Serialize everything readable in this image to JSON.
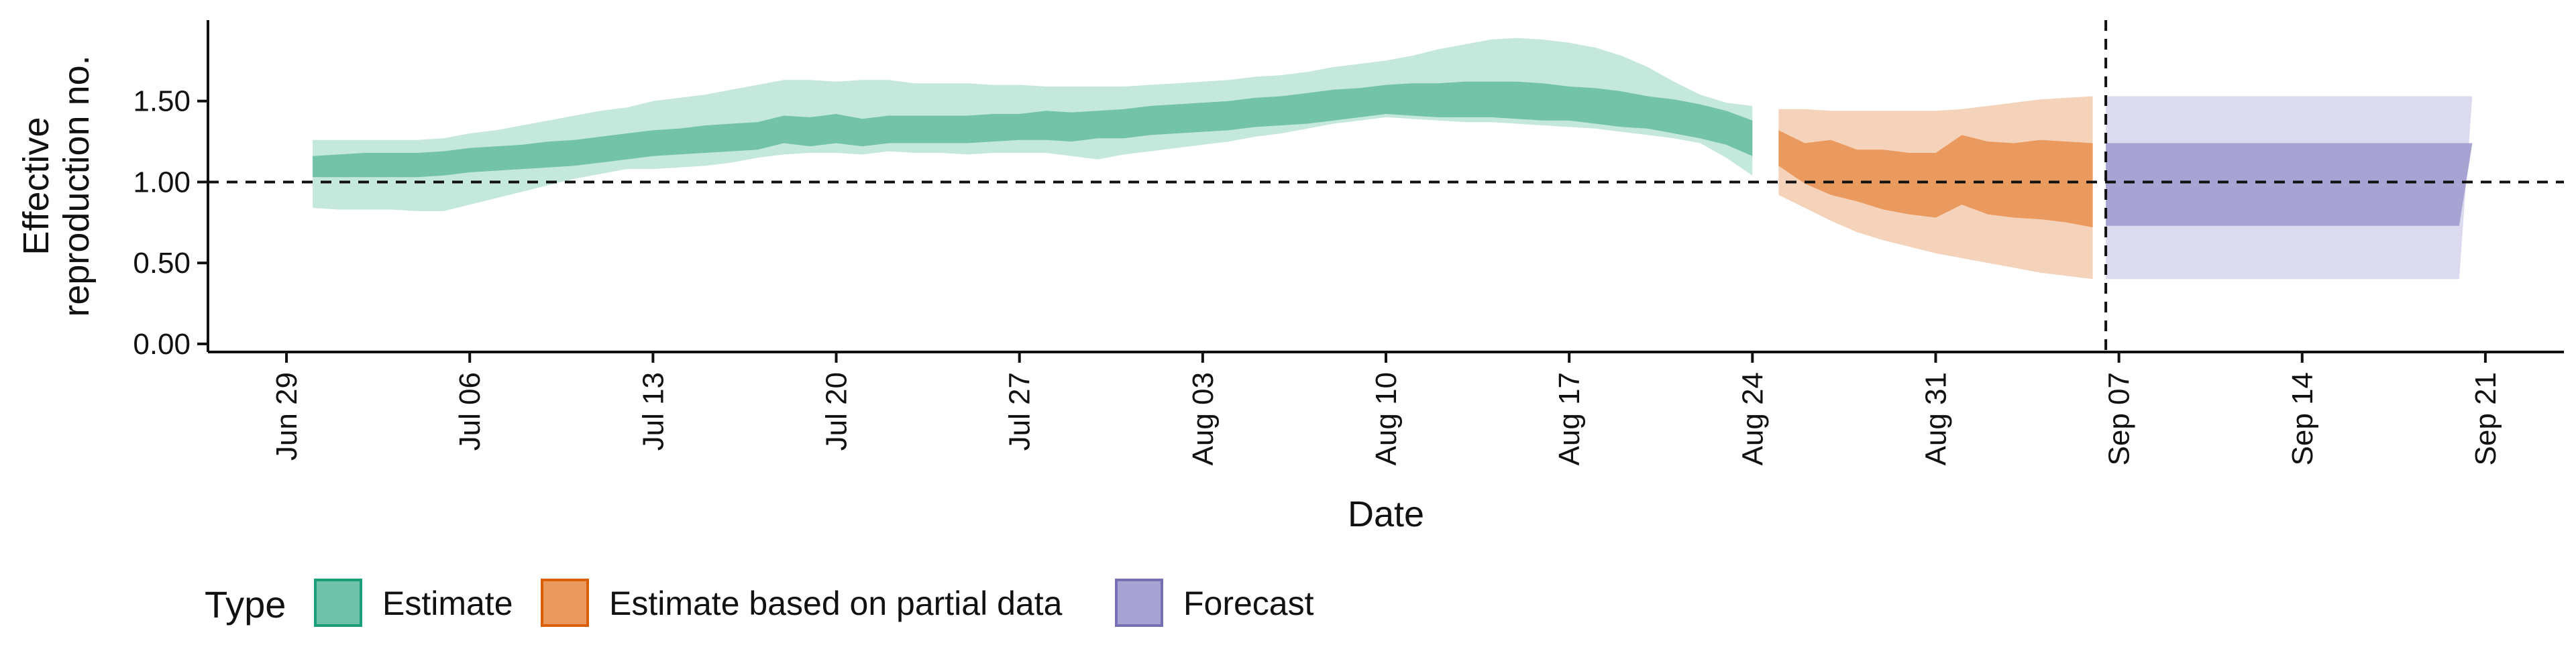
{
  "chart_data": {
    "type": "area",
    "xlabel": "Date",
    "ylabel_lines": [
      "Effective",
      "reproduction no."
    ],
    "xlim": [
      "2020-06-26",
      "2020-09-24"
    ],
    "ylim": [
      -0.05,
      2.0
    ],
    "x_ticks": [
      {
        "date": "2020-06-29",
        "label": "Jun 29"
      },
      {
        "date": "2020-07-06",
        "label": "Jul 06"
      },
      {
        "date": "2020-07-13",
        "label": "Jul 13"
      },
      {
        "date": "2020-07-20",
        "label": "Jul 20"
      },
      {
        "date": "2020-07-27",
        "label": "Jul 27"
      },
      {
        "date": "2020-08-03",
        "label": "Aug 03"
      },
      {
        "date": "2020-08-10",
        "label": "Aug 10"
      },
      {
        "date": "2020-08-17",
        "label": "Aug 17"
      },
      {
        "date": "2020-08-24",
        "label": "Aug 24"
      },
      {
        "date": "2020-08-31",
        "label": "Aug 31"
      },
      {
        "date": "2020-09-07",
        "label": "Sep 07"
      },
      {
        "date": "2020-09-14",
        "label": "Sep 14"
      },
      {
        "date": "2020-09-21",
        "label": "Sep 21"
      }
    ],
    "y_ticks": [
      {
        "value": 0.0,
        "label": "0.00"
      },
      {
        "value": 0.5,
        "label": "0.50"
      },
      {
        "value": 1.0,
        "label": "1.00"
      },
      {
        "value": 1.5,
        "label": "1.50"
      }
    ],
    "reference_hline": 1.0,
    "reference_vline": "2020-09-06",
    "grid": false,
    "legend_position": "bottom-left",
    "legend": {
      "title": "Type",
      "items": [
        {
          "label": "Estimate",
          "fill": "#6fc2a7",
          "stroke": "#1b9e77"
        },
        {
          "label": "Estimate based on partial data",
          "fill": "#eb9a5f",
          "stroke": "#d95f02"
        },
        {
          "label": "Forecast",
          "fill": "#a7a3d2",
          "stroke": "#7570b3"
        }
      ]
    },
    "series": [
      {
        "type_label": "Estimate",
        "colors": {
          "outer": "#c5e8dc",
          "inner": "#72c3a7"
        },
        "dates": [
          "2020-06-30",
          "2020-07-01",
          "2020-07-02",
          "2020-07-03",
          "2020-07-04",
          "2020-07-05",
          "2020-07-06",
          "2020-07-07",
          "2020-07-08",
          "2020-07-09",
          "2020-07-10",
          "2020-07-11",
          "2020-07-12",
          "2020-07-13",
          "2020-07-14",
          "2020-07-15",
          "2020-07-16",
          "2020-07-17",
          "2020-07-18",
          "2020-07-19",
          "2020-07-20",
          "2020-07-21",
          "2020-07-22",
          "2020-07-23",
          "2020-07-24",
          "2020-07-25",
          "2020-07-26",
          "2020-07-27",
          "2020-07-28",
          "2020-07-29",
          "2020-07-30",
          "2020-07-31",
          "2020-08-01",
          "2020-08-02",
          "2020-08-03",
          "2020-08-04",
          "2020-08-05",
          "2020-08-06",
          "2020-08-07",
          "2020-08-08",
          "2020-08-09",
          "2020-08-10",
          "2020-08-11",
          "2020-08-12",
          "2020-08-13",
          "2020-08-14",
          "2020-08-15",
          "2020-08-16",
          "2020-08-17",
          "2020-08-18",
          "2020-08-19",
          "2020-08-20",
          "2020-08-21",
          "2020-08-22",
          "2020-08-23",
          "2020-08-24"
        ],
        "outer_lower": [
          0.84,
          0.83,
          0.83,
          0.83,
          0.82,
          0.82,
          0.86,
          0.9,
          0.94,
          0.98,
          1.02,
          1.05,
          1.08,
          1.08,
          1.09,
          1.1,
          1.12,
          1.15,
          1.17,
          1.18,
          1.18,
          1.17,
          1.19,
          1.18,
          1.18,
          1.17,
          1.18,
          1.18,
          1.18,
          1.16,
          1.14,
          1.17,
          1.19,
          1.21,
          1.23,
          1.25,
          1.28,
          1.3,
          1.33,
          1.36,
          1.38,
          1.4,
          1.39,
          1.38,
          1.37,
          1.37,
          1.36,
          1.35,
          1.34,
          1.33,
          1.31,
          1.29,
          1.27,
          1.24,
          1.15,
          1.04
        ],
        "outer_upper": [
          1.26,
          1.26,
          1.26,
          1.26,
          1.26,
          1.27,
          1.3,
          1.32,
          1.35,
          1.38,
          1.41,
          1.44,
          1.46,
          1.5,
          1.52,
          1.54,
          1.57,
          1.6,
          1.63,
          1.63,
          1.62,
          1.63,
          1.63,
          1.61,
          1.61,
          1.61,
          1.6,
          1.6,
          1.59,
          1.59,
          1.59,
          1.59,
          1.6,
          1.61,
          1.62,
          1.63,
          1.65,
          1.66,
          1.68,
          1.71,
          1.73,
          1.75,
          1.78,
          1.82,
          1.85,
          1.88,
          1.89,
          1.88,
          1.86,
          1.83,
          1.78,
          1.71,
          1.62,
          1.54,
          1.49,
          1.47
        ],
        "inner_lower": [
          1.03,
          1.03,
          1.03,
          1.03,
          1.03,
          1.04,
          1.06,
          1.07,
          1.08,
          1.09,
          1.1,
          1.12,
          1.14,
          1.16,
          1.17,
          1.18,
          1.19,
          1.2,
          1.24,
          1.22,
          1.24,
          1.22,
          1.24,
          1.24,
          1.24,
          1.24,
          1.25,
          1.26,
          1.26,
          1.25,
          1.27,
          1.27,
          1.29,
          1.3,
          1.31,
          1.32,
          1.34,
          1.35,
          1.36,
          1.38,
          1.4,
          1.42,
          1.41,
          1.4,
          1.4,
          1.4,
          1.39,
          1.38,
          1.38,
          1.36,
          1.34,
          1.33,
          1.3,
          1.27,
          1.23,
          1.16
        ],
        "inner_upper": [
          1.16,
          1.17,
          1.18,
          1.18,
          1.18,
          1.19,
          1.21,
          1.22,
          1.23,
          1.25,
          1.26,
          1.28,
          1.3,
          1.32,
          1.33,
          1.35,
          1.36,
          1.37,
          1.41,
          1.4,
          1.42,
          1.39,
          1.41,
          1.41,
          1.41,
          1.41,
          1.42,
          1.42,
          1.44,
          1.43,
          1.44,
          1.45,
          1.47,
          1.48,
          1.49,
          1.5,
          1.52,
          1.53,
          1.55,
          1.57,
          1.58,
          1.6,
          1.61,
          1.61,
          1.62,
          1.62,
          1.62,
          1.61,
          1.59,
          1.58,
          1.56,
          1.53,
          1.51,
          1.48,
          1.44,
          1.38
        ]
      },
      {
        "type_label": "Estimate based on partial data",
        "colors": {
          "outer": "#f5d3bb",
          "inner": "#eb9a5f"
        },
        "dates": [
          "2020-08-25",
          "2020-08-26",
          "2020-08-27",
          "2020-08-28",
          "2020-08-29",
          "2020-08-30",
          "2020-08-31",
          "2020-09-01",
          "2020-09-02",
          "2020-09-03",
          "2020-09-04",
          "2020-09-05",
          "2020-09-06"
        ],
        "outer_lower": [
          0.92,
          0.84,
          0.76,
          0.69,
          0.64,
          0.6,
          0.56,
          0.53,
          0.5,
          0.47,
          0.44,
          0.42,
          0.4
        ],
        "outer_upper": [
          1.45,
          1.45,
          1.44,
          1.44,
          1.44,
          1.44,
          1.44,
          1.45,
          1.47,
          1.49,
          1.51,
          1.52,
          1.53
        ],
        "inner_lower": [
          1.1,
          0.99,
          0.92,
          0.88,
          0.83,
          0.8,
          0.78,
          0.86,
          0.8,
          0.78,
          0.77,
          0.75,
          0.72
        ],
        "inner_upper": [
          1.32,
          1.24,
          1.26,
          1.2,
          1.2,
          1.18,
          1.18,
          1.29,
          1.25,
          1.24,
          1.26,
          1.25,
          1.24
        ]
      },
      {
        "type_label": "Forecast",
        "colors": {
          "outer": "#dcdaee",
          "inner": "#a7a3d2"
        },
        "dates": [
          "2020-09-07",
          "2020-09-20"
        ],
        "outer_lower": [
          0.4,
          0.4
        ],
        "outer_upper": [
          1.53,
          1.53
        ],
        "inner_lower": [
          0.73,
          0.73
        ],
        "inner_upper": [
          1.24,
          1.24
        ]
      }
    ]
  }
}
